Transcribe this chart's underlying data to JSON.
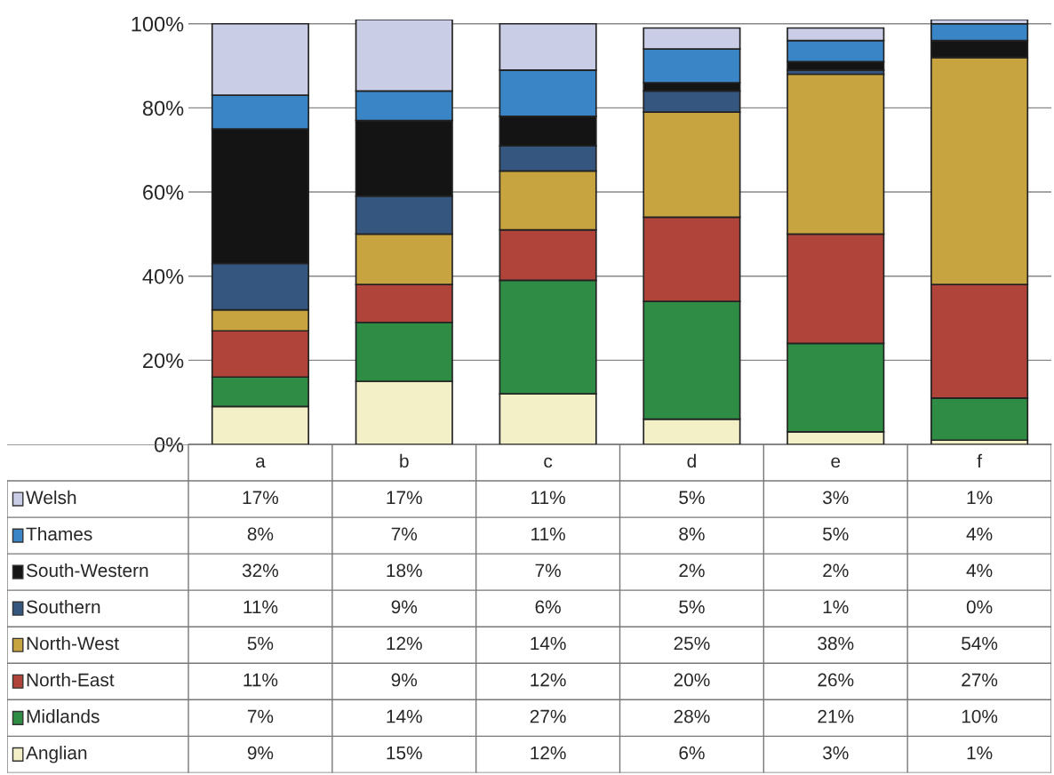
{
  "chart_data": {
    "type": "bar",
    "stacked": true,
    "categories": [
      "a",
      "b",
      "c",
      "d",
      "e",
      "f"
    ],
    "series": [
      {
        "name": "Anglian",
        "color": "#f3f0c8",
        "values": [
          9,
          15,
          12,
          6,
          3,
          1
        ],
        "value_labels": [
          "9%",
          "15%",
          "12%",
          "6%",
          "3%",
          "1%"
        ]
      },
      {
        "name": "Midlands",
        "color": "#2f8c44",
        "values": [
          7,
          14,
          27,
          28,
          21,
          10
        ],
        "value_labels": [
          "7%",
          "14%",
          "27%",
          "28%",
          "21%",
          "10%"
        ]
      },
      {
        "name": "North-East",
        "color": "#b0443a",
        "values": [
          11,
          9,
          12,
          20,
          26,
          27
        ],
        "value_labels": [
          "11%",
          "9%",
          "12%",
          "20%",
          "26%",
          "27%"
        ]
      },
      {
        "name": "North-West",
        "color": "#c8a440",
        "values": [
          5,
          12,
          14,
          25,
          38,
          54
        ],
        "value_labels": [
          "5%",
          "12%",
          "14%",
          "25%",
          "38%",
          "54%"
        ]
      },
      {
        "name": "Southern",
        "color": "#35577f",
        "values": [
          11,
          9,
          6,
          5,
          1,
          0
        ],
        "value_labels": [
          "11%",
          "9%",
          "6%",
          "5%",
          "1%",
          "0%"
        ]
      },
      {
        "name": "South-Western",
        "color": "#141414",
        "values": [
          32,
          18,
          7,
          2,
          2,
          4
        ],
        "value_labels": [
          "32%",
          "18%",
          "7%",
          "2%",
          "2%",
          "4%"
        ]
      },
      {
        "name": "Thames",
        "color": "#3a85c6",
        "values": [
          8,
          7,
          11,
          8,
          5,
          4
        ],
        "value_labels": [
          "8%",
          "7%",
          "11%",
          "8%",
          "5%",
          "4%"
        ]
      },
      {
        "name": "Welsh",
        "color": "#c9cde6",
        "values": [
          17,
          17,
          11,
          5,
          3,
          1
        ],
        "value_labels": [
          "17%",
          "17%",
          "11%",
          "5%",
          "3%",
          "1%"
        ]
      }
    ],
    "ylim": [
      0,
      101
    ],
    "yticks": [
      {
        "value": 0,
        "label": "0%"
      },
      {
        "value": 20,
        "label": "20%"
      },
      {
        "value": 40,
        "label": "40%"
      },
      {
        "value": 60,
        "label": "60%"
      },
      {
        "value": 80,
        "label": "80%"
      },
      {
        "value": 100,
        "label": "100%"
      }
    ],
    "grid": "y",
    "tick_labels": "y",
    "legend": "bottom left"
  }
}
